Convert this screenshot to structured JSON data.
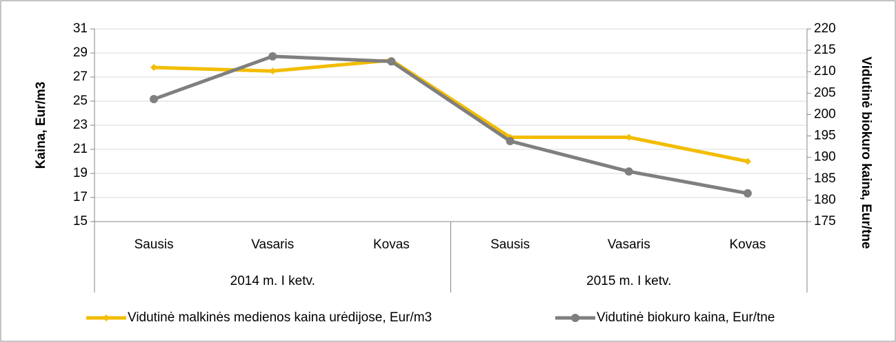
{
  "chart_data": {
    "type": "line",
    "categories": [
      "Sausis",
      "Vasaris",
      "Kovas",
      "Sausis",
      "Vasaris",
      "Kovas"
    ],
    "groups": [
      {
        "name": "2014 m. I ketv.",
        "count": 3
      },
      {
        "name": "2015 m. I ketv.",
        "count": 3
      }
    ],
    "series": [
      {
        "name": "Vidutinė malkinės medienos kaina urėdijose, Eur/m3",
        "color": "#f2bd00",
        "marker": "diamond",
        "values": [
          27.8,
          27.5,
          28.4,
          22.0,
          22.0,
          20.0
        ]
      },
      {
        "name": "Vidutinė biokuro kaina, Eur/tne",
        "color": "#7f7f7f",
        "marker": "circle",
        "axis": "y2",
        "values": [
          203.6,
          213.6,
          212.4,
          193.8,
          186.7,
          181.6
        ]
      }
    ],
    "ylabel": "Kaina, Eur/m3",
    "y2label": "Vidutinė biokuro kaina, Eur/tne",
    "ylim": [
      15,
      31
    ],
    "yticks": [
      15,
      17,
      19,
      21,
      23,
      25,
      27,
      29,
      31
    ],
    "y2lim": [
      175,
      220
    ],
    "y2ticks": [
      175,
      180,
      185,
      190,
      195,
      200,
      205,
      210,
      215,
      220
    ],
    "grid": true,
    "legend": "bottom"
  }
}
